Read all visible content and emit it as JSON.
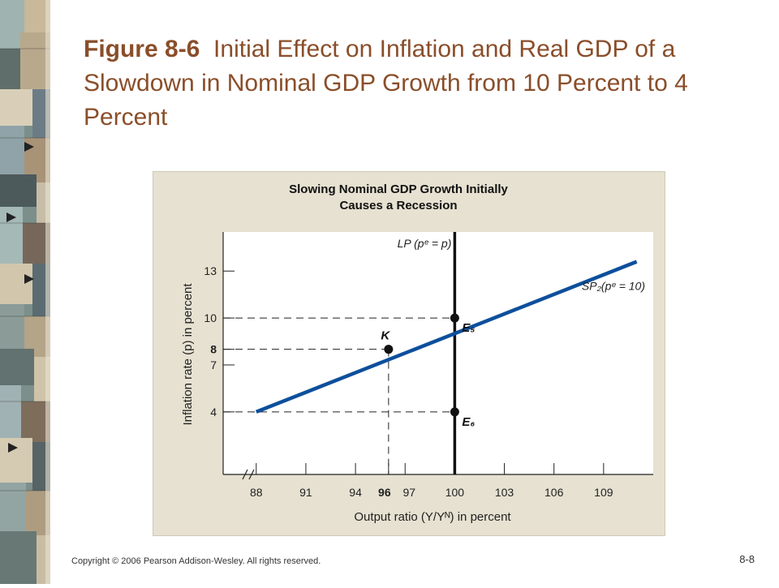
{
  "slide": {
    "title_prefix": "Figure 8-6",
    "title_rest": "Initial Effect on Inflation and Real GDP of a Slowdown in Nominal GDP Growth from 10 Percent to 4 Percent",
    "copyright": "Copyright © 2006 Pearson Addison-Wesley. All rights reserved.",
    "page_number": "8-8"
  },
  "chart_data": {
    "type": "line",
    "title_line1": "Slowing Nominal GDP Growth Initially",
    "title_line2": "Causes a Recession",
    "xlabel": "Output ratio (Y/Yᴺ) in percent",
    "ylabel": "Inflation rate (p) in percent",
    "xlim": [
      86,
      112
    ],
    "ylim": [
      0,
      15.5
    ],
    "x_ticks": [
      88,
      91,
      94,
      96,
      97,
      100,
      103,
      106,
      109
    ],
    "x_ticks_bold": [
      96
    ],
    "y_ticks": [
      4,
      7,
      8,
      10,
      13
    ],
    "y_ticks_bold": [
      8
    ],
    "series": [
      {
        "name": "SP₂(pᵉ = 10)",
        "x": [
          88,
          111
        ],
        "y": [
          4,
          13.6
        ]
      },
      {
        "name": "LP (pᵉ = p)",
        "x": [
          100,
          100
        ],
        "y": [
          0,
          15.5
        ]
      }
    ],
    "points": [
      {
        "label": "K",
        "x": 96,
        "y": 8
      },
      {
        "label": "E₅",
        "x": 100,
        "y": 10
      },
      {
        "label": "E₆",
        "x": 100,
        "y": 4
      }
    ],
    "line_color": "#0d4f9c",
    "grid": false
  }
}
